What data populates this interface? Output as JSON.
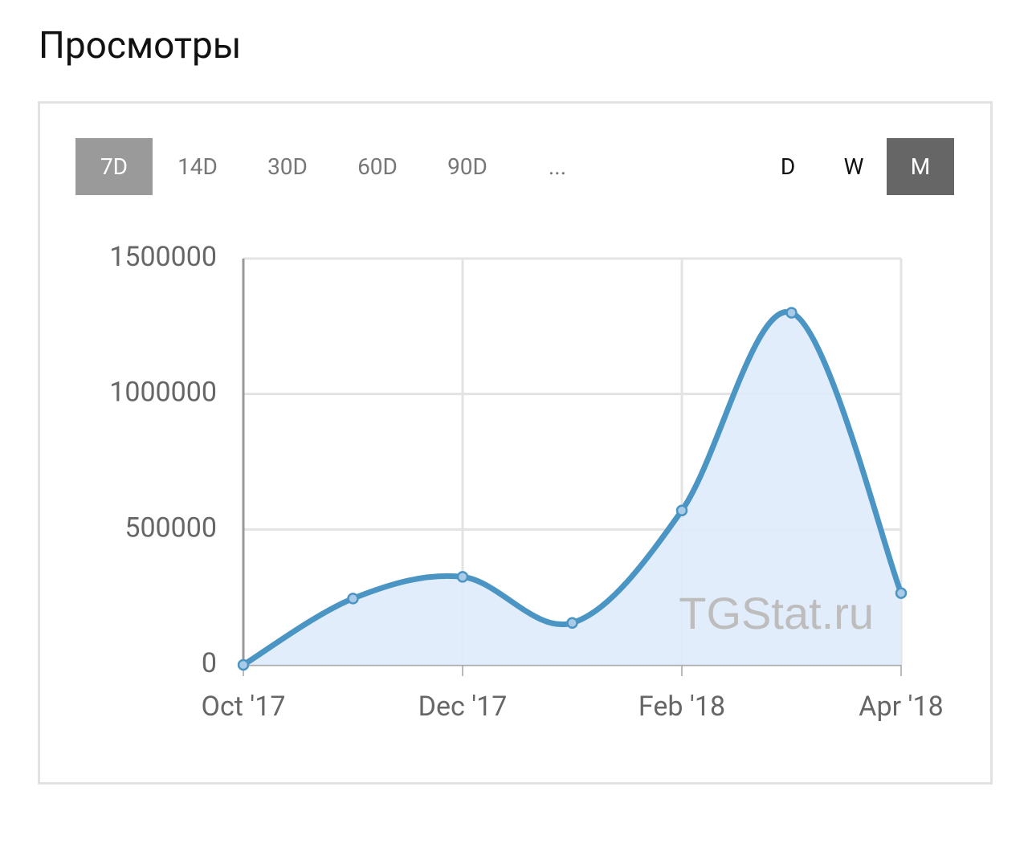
{
  "header": {
    "title": "Просмотры"
  },
  "range_buttons": [
    {
      "label": "7D",
      "active": true
    },
    {
      "label": "14D",
      "active": false
    },
    {
      "label": "30D",
      "active": false
    },
    {
      "label": "60D",
      "active": false
    },
    {
      "label": "90D",
      "active": false
    },
    {
      "label": "...",
      "active": false
    }
  ],
  "period_buttons": [
    {
      "label": "D",
      "active": false
    },
    {
      "label": "W",
      "active": false
    },
    {
      "label": "M",
      "active": true
    }
  ],
  "chart_data": {
    "type": "area",
    "watermark": "TGStat.ru",
    "categories": [
      "Oct '17",
      null,
      "Dec '17",
      null,
      "Feb '18",
      null,
      "Apr '18"
    ],
    "series": [
      {
        "color": "#4a95c3",
        "fill": "#dfebfb",
        "values": [
          0,
          245000,
          325000,
          155000,
          570000,
          1300000,
          265000
        ]
      }
    ],
    "ylim": [
      0,
      1500000
    ],
    "yticks": [
      0,
      500000,
      1000000,
      1500000
    ],
    "grid": true
  }
}
